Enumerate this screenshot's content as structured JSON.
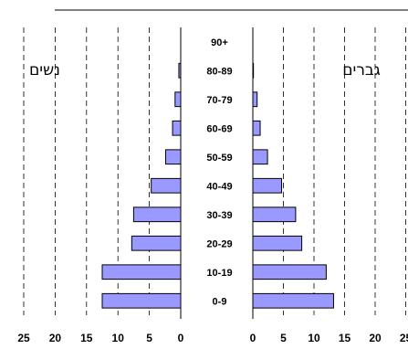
{
  "chart_data": {
    "type": "bar",
    "orientation": "horizontal-pyramid",
    "categories": [
      "0-9",
      "10-19",
      "20-29",
      "30-39",
      "40-49",
      "50-59",
      "60-69",
      "70-79",
      "80-89",
      "90+"
    ],
    "series": [
      {
        "name": "נשים",
        "side": "left",
        "values": [
          12.5,
          12.5,
          7.8,
          7.5,
          4.7,
          2.4,
          1.3,
          0.9,
          0.3,
          0.0
        ],
        "color": "#9999ff"
      },
      {
        "name": "גברים",
        "side": "right",
        "values": [
          13.2,
          12.0,
          8.0,
          7.0,
          4.7,
          2.4,
          1.2,
          0.7,
          0.1,
          0.0
        ],
        "color": "#9999ff"
      }
    ],
    "xlim": [
      0,
      25
    ],
    "x_ticks": [
      "0",
      "5",
      "10",
      "15",
      "20",
      "25"
    ],
    "left_title": "נשים",
    "right_title": "גברים",
    "grid": "vertical-dashed",
    "bar_outline": "#000000",
    "title": "",
    "xlabel": "",
    "ylabel": ""
  }
}
